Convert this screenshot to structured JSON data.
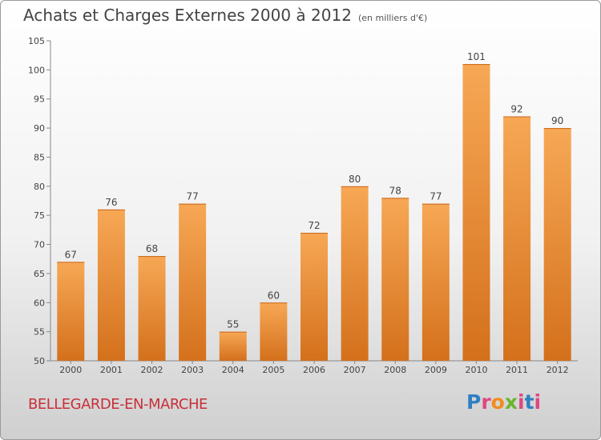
{
  "title": "Achats et Charges Externes 2000 à 2012",
  "subtitle": "(en milliers d'€)",
  "location": "BELLEGARDE-EN-MARCHE",
  "logo": {
    "text": "Proxiti",
    "letter_colors": [
      "#2e7fc2",
      "#e0477e",
      "#f28b1e",
      "#6bb52e",
      "#e0477e",
      "#2e7fc2",
      "#e0477e"
    ]
  },
  "colors": {
    "bar_light": "#f7a855",
    "bar_dark": "#d4701c",
    "axis": "#888888",
    "title": "#444444",
    "location": "#c8303a"
  },
  "chart_data": {
    "type": "bar",
    "title": "Achats et Charges Externes 2000 à 2012",
    "subtitle": "(en milliers d'€)",
    "xlabel": "",
    "ylabel": "",
    "categories": [
      "2000",
      "2001",
      "2002",
      "2003",
      "2004",
      "2005",
      "2006",
      "2007",
      "2008",
      "2009",
      "2010",
      "2011",
      "2012"
    ],
    "values": [
      67,
      76,
      68,
      77,
      55,
      60,
      72,
      80,
      78,
      77,
      101,
      92,
      90
    ],
    "ylim": [
      50,
      105
    ],
    "yticks": [
      50,
      55,
      60,
      65,
      70,
      75,
      80,
      85,
      90,
      95,
      100,
      105
    ],
    "grid": false,
    "data_labels": true
  }
}
